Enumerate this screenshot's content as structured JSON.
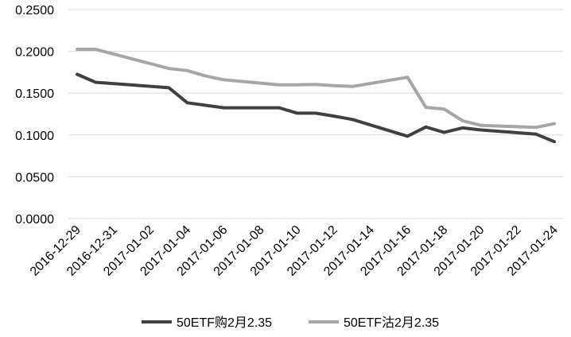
{
  "chart_data": {
    "type": "line",
    "title": "",
    "xlabel": "",
    "ylabel": "",
    "ylim": [
      0,
      0.25
    ],
    "yticks": [
      "0.0000",
      "0.0500",
      "0.1000",
      "0.1500",
      "0.2000",
      "0.2500"
    ],
    "xticks": [
      "2016-12-29",
      "2016-12-31",
      "2017-01-02",
      "2017-01-04",
      "2017-01-06",
      "2017-01-08",
      "2017-01-10",
      "2017-01-12",
      "2017-01-14",
      "2017-01-16",
      "2017-01-18",
      "2017-01-20",
      "2017-01-22",
      "2017-01-24"
    ],
    "x": [
      "2016-12-29",
      "2016-12-30",
      "2017-01-03",
      "2017-01-04",
      "2017-01-05",
      "2017-01-06",
      "2017-01-09",
      "2017-01-10",
      "2017-01-11",
      "2017-01-12",
      "2017-01-13",
      "2017-01-16",
      "2017-01-17",
      "2017-01-18",
      "2017-01-19",
      "2017-01-20",
      "2017-01-23",
      "2017-01-24"
    ],
    "grid": true,
    "legend_position": "bottom",
    "series": [
      {
        "name": "50ETF购2月2.35",
        "color": "#404040",
        "values": [
          0.1725,
          0.163,
          0.1565,
          0.1385,
          0.1355,
          0.1325,
          0.1325,
          0.126,
          0.126,
          0.1225,
          0.1185,
          0.0985,
          0.1095,
          0.103,
          0.1085,
          0.106,
          0.101,
          0.092
        ]
      },
      {
        "name": "50ETF沽2月2.35",
        "color": "#a6a6a6",
        "values": [
          0.2025,
          0.2025,
          0.1795,
          0.177,
          0.1705,
          0.166,
          0.16,
          0.16,
          0.1605,
          0.159,
          0.158,
          0.169,
          0.133,
          0.131,
          0.117,
          0.1115,
          0.109,
          0.1135
        ]
      }
    ]
  }
}
